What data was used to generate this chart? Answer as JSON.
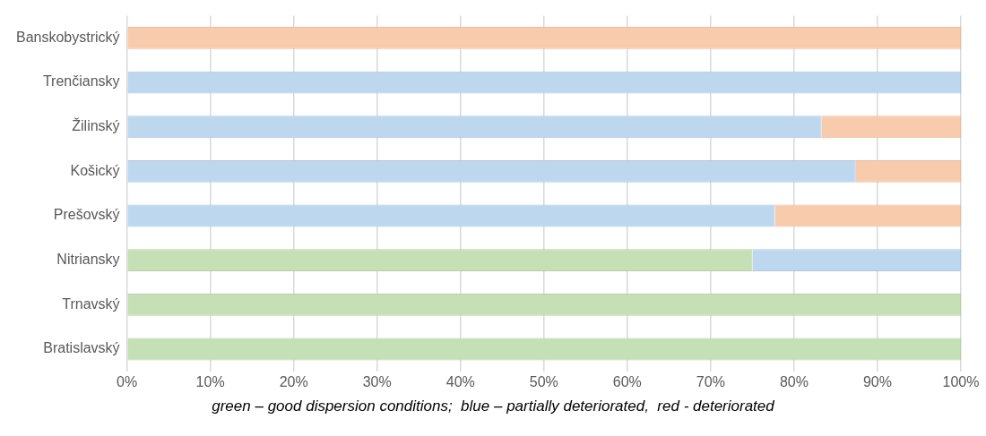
{
  "chart_data": {
    "type": "bar",
    "orientation": "horizontal",
    "stacked": true,
    "categories": [
      "Banskobystrický",
      "Trenčiansky",
      "Žilinský",
      "Košický",
      "Prešovský",
      "Nitriansky",
      "Trnavský",
      "Bratislavský"
    ],
    "series": [
      {
        "color": "#c5e0b4",
        "values": [
          0,
          0,
          0,
          0,
          0,
          75,
          100,
          100
        ]
      },
      {
        "color": "#bdd7ee",
        "values": [
          0,
          100,
          83.3,
          87.4,
          77.7,
          25,
          0,
          0
        ]
      },
      {
        "color": "#f8cbad",
        "values": [
          100,
          0,
          16.7,
          12.6,
          22.3,
          0,
          0,
          0
        ]
      }
    ],
    "xlim": [
      0,
      100
    ],
    "xticks": [
      {
        "value": 0,
        "label": "0%"
      },
      {
        "value": 10,
        "label": "10%"
      },
      {
        "value": 20,
        "label": "20%"
      },
      {
        "value": 30,
        "label": "30%"
      },
      {
        "value": 40,
        "label": "40%"
      },
      {
        "value": 50,
        "label": "50%"
      },
      {
        "value": 60,
        "label": "60%"
      },
      {
        "value": 70,
        "label": "70%"
      },
      {
        "value": 80,
        "label": "80%"
      },
      {
        "value": 90,
        "label": "90%"
      },
      {
        "value": 100,
        "label": "100%"
      }
    ],
    "grid": "x",
    "legend": false,
    "annotations": [
      "green – good dispersion conditions;  blue – partially deteriorated,  red - deteriorated"
    ]
  }
}
